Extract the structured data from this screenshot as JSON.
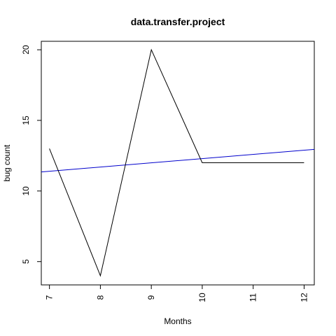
{
  "chart_data": {
    "type": "line",
    "title": "data.transfer.project",
    "xlabel": "Months",
    "ylabel": "bug count",
    "x": [
      7,
      8,
      9,
      10,
      11,
      12
    ],
    "xlim": [
      6.84,
      12.2
    ],
    "ylim": [
      3.35,
      20.6
    ],
    "xticks": [
      "7",
      "8",
      "9",
      "10",
      "11",
      "12"
    ],
    "yticks": [
      "5",
      "10",
      "15",
      "20"
    ],
    "series": [
      {
        "values": [
          13,
          4,
          20,
          12,
          12,
          12
        ],
        "color": "#000000"
      }
    ],
    "trend_line": {
      "x": [
        6.84,
        12.2
      ],
      "y": [
        11.35,
        12.95
      ],
      "color": "#0000cc"
    },
    "grid": false,
    "legend": "none"
  }
}
